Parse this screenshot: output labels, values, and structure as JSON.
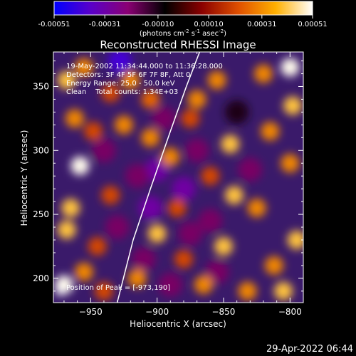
{
  "colorbar": {
    "tick_labels": [
      "-0.00051",
      "-0.00031",
      "-0.00010",
      "0.00010",
      "0.00031",
      "0.00051"
    ],
    "tick_values": [
      -0.00051,
      -0.00031,
      -0.0001,
      0.0001,
      0.00031,
      0.00051
    ],
    "range": [
      -0.00051,
      0.00051
    ],
    "units_main": "(photons cm",
    "units_exp1": "-2",
    "units_mid1": " s",
    "units_exp2": "-1",
    "units_mid2": " asec",
    "units_exp3": "-2",
    "units_end": ")",
    "colors": [
      "#0000ff",
      "#5a00c8",
      "#8a0073",
      "#000000",
      "#8a0000",
      "#e05000",
      "#ffb000",
      "#ffffff"
    ]
  },
  "chart_data": {
    "type": "heatmap",
    "title": "Reconstructed RHESSI Image",
    "xlabel": "Heliocentric X (arcsec)",
    "ylabel": "Heliocentric Y (arcsec)",
    "xlim": [
      -978,
      -790
    ],
    "ylim": [
      181,
      377
    ],
    "x_ticks": [
      -950,
      -900,
      -850,
      -800
    ],
    "x_tick_labels": [
      "−950",
      "−900",
      "−850",
      "−800"
    ],
    "y_ticks": [
      200,
      250,
      300,
      350
    ],
    "y_tick_labels": [
      "200",
      "250",
      "300",
      "350"
    ],
    "annotations": [
      "19-May-2002 11:34:44.000 to 11:36:28.000",
      "Detectors: 3F 4F 5F 6F 7F 8F, Att 0",
      "Energy Range: 25.0 - 50.0 keV",
      "Clean    Total counts: 1.34E+03"
    ],
    "peak_label": "Position of Peak = [-973,190]",
    "peak": [
      -973,
      190
    ],
    "limb": [
      [
        -930,
        181
      ],
      [
        -918,
        230
      ],
      [
        -905,
        270
      ],
      [
        -890,
        315
      ],
      [
        -878,
        350
      ],
      [
        -868,
        377
      ]
    ],
    "hot_spots": [
      [
        -968,
        355,
        0.0004
      ],
      [
        -955,
        365,
        0.0003
      ],
      [
        -962,
        325,
        0.0003
      ],
      [
        -958,
        288,
        0.0005
      ],
      [
        -965,
        255,
        0.0004
      ],
      [
        -968,
        238,
        0.0004
      ],
      [
        -970,
        195,
        0.0005
      ],
      [
        -955,
        205,
        0.0003
      ],
      [
        -920,
        355,
        0.0003
      ],
      [
        -905,
        340,
        0.00025
      ],
      [
        -925,
        320,
        0.0003
      ],
      [
        -905,
        310,
        0.0003
      ],
      [
        -890,
        295,
        0.0003
      ],
      [
        -870,
        340,
        0.0003
      ],
      [
        -855,
        355,
        0.0003
      ],
      [
        -845,
        305,
        0.0004
      ],
      [
        -842,
        265,
        0.0004
      ],
      [
        -850,
        225,
        0.0004
      ],
      [
        -865,
        195,
        0.0003
      ],
      [
        -820,
        360,
        0.0003
      ],
      [
        -815,
        315,
        0.0003
      ],
      [
        -825,
        255,
        0.0003
      ],
      [
        -812,
        210,
        0.0003
      ],
      [
        -800,
        365,
        0.0005
      ],
      [
        -798,
        335,
        0.0004
      ],
      [
        -800,
        290,
        0.0003
      ],
      [
        -795,
        230,
        0.0004
      ],
      [
        -805,
        190,
        0.0004
      ],
      [
        -935,
        265,
        0.0002
      ],
      [
        -945,
        225,
        0.0002
      ],
      [
        -885,
        255,
        0.0002
      ],
      [
        -880,
        215,
        0.0002
      ],
      [
        -900,
        235,
        0.0004
      ],
      [
        -915,
        200,
        0.0003
      ],
      [
        -940,
        190,
        0.0002
      ],
      [
        -832,
        190,
        0.0003
      ],
      [
        -860,
        280,
        0.0002
      ],
      [
        -875,
        325,
        0.0002
      ],
      [
        -935,
        345,
        0.0002
      ],
      [
        -948,
        315,
        0.0002
      ]
    ],
    "cold_spots": [
      [
        -928,
        370,
        -0.0004
      ],
      [
        -900,
        285,
        -0.0003
      ],
      [
        -905,
        255,
        -0.0003
      ],
      [
        -880,
        270,
        -0.0003
      ],
      [
        -875,
        235,
        -0.0002
      ],
      [
        -910,
        215,
        -0.0002
      ],
      [
        -870,
        300,
        -0.0002
      ],
      [
        -895,
        325,
        -0.0002
      ],
      [
        -860,
        245,
        -0.0002
      ],
      [
        -940,
        300,
        -0.0002
      ],
      [
        -930,
        240,
        -0.0002
      ],
      [
        -840,
        330,
        -0.0001
      ],
      [
        -830,
        285,
        -0.0002
      ],
      [
        -855,
        205,
        -0.0002
      ],
      [
        -915,
        280,
        -0.0002
      ],
      [
        -890,
        195,
        -0.0002
      ]
    ]
  },
  "footer": {
    "timestamp": "29-Apr-2022 06:44"
  }
}
